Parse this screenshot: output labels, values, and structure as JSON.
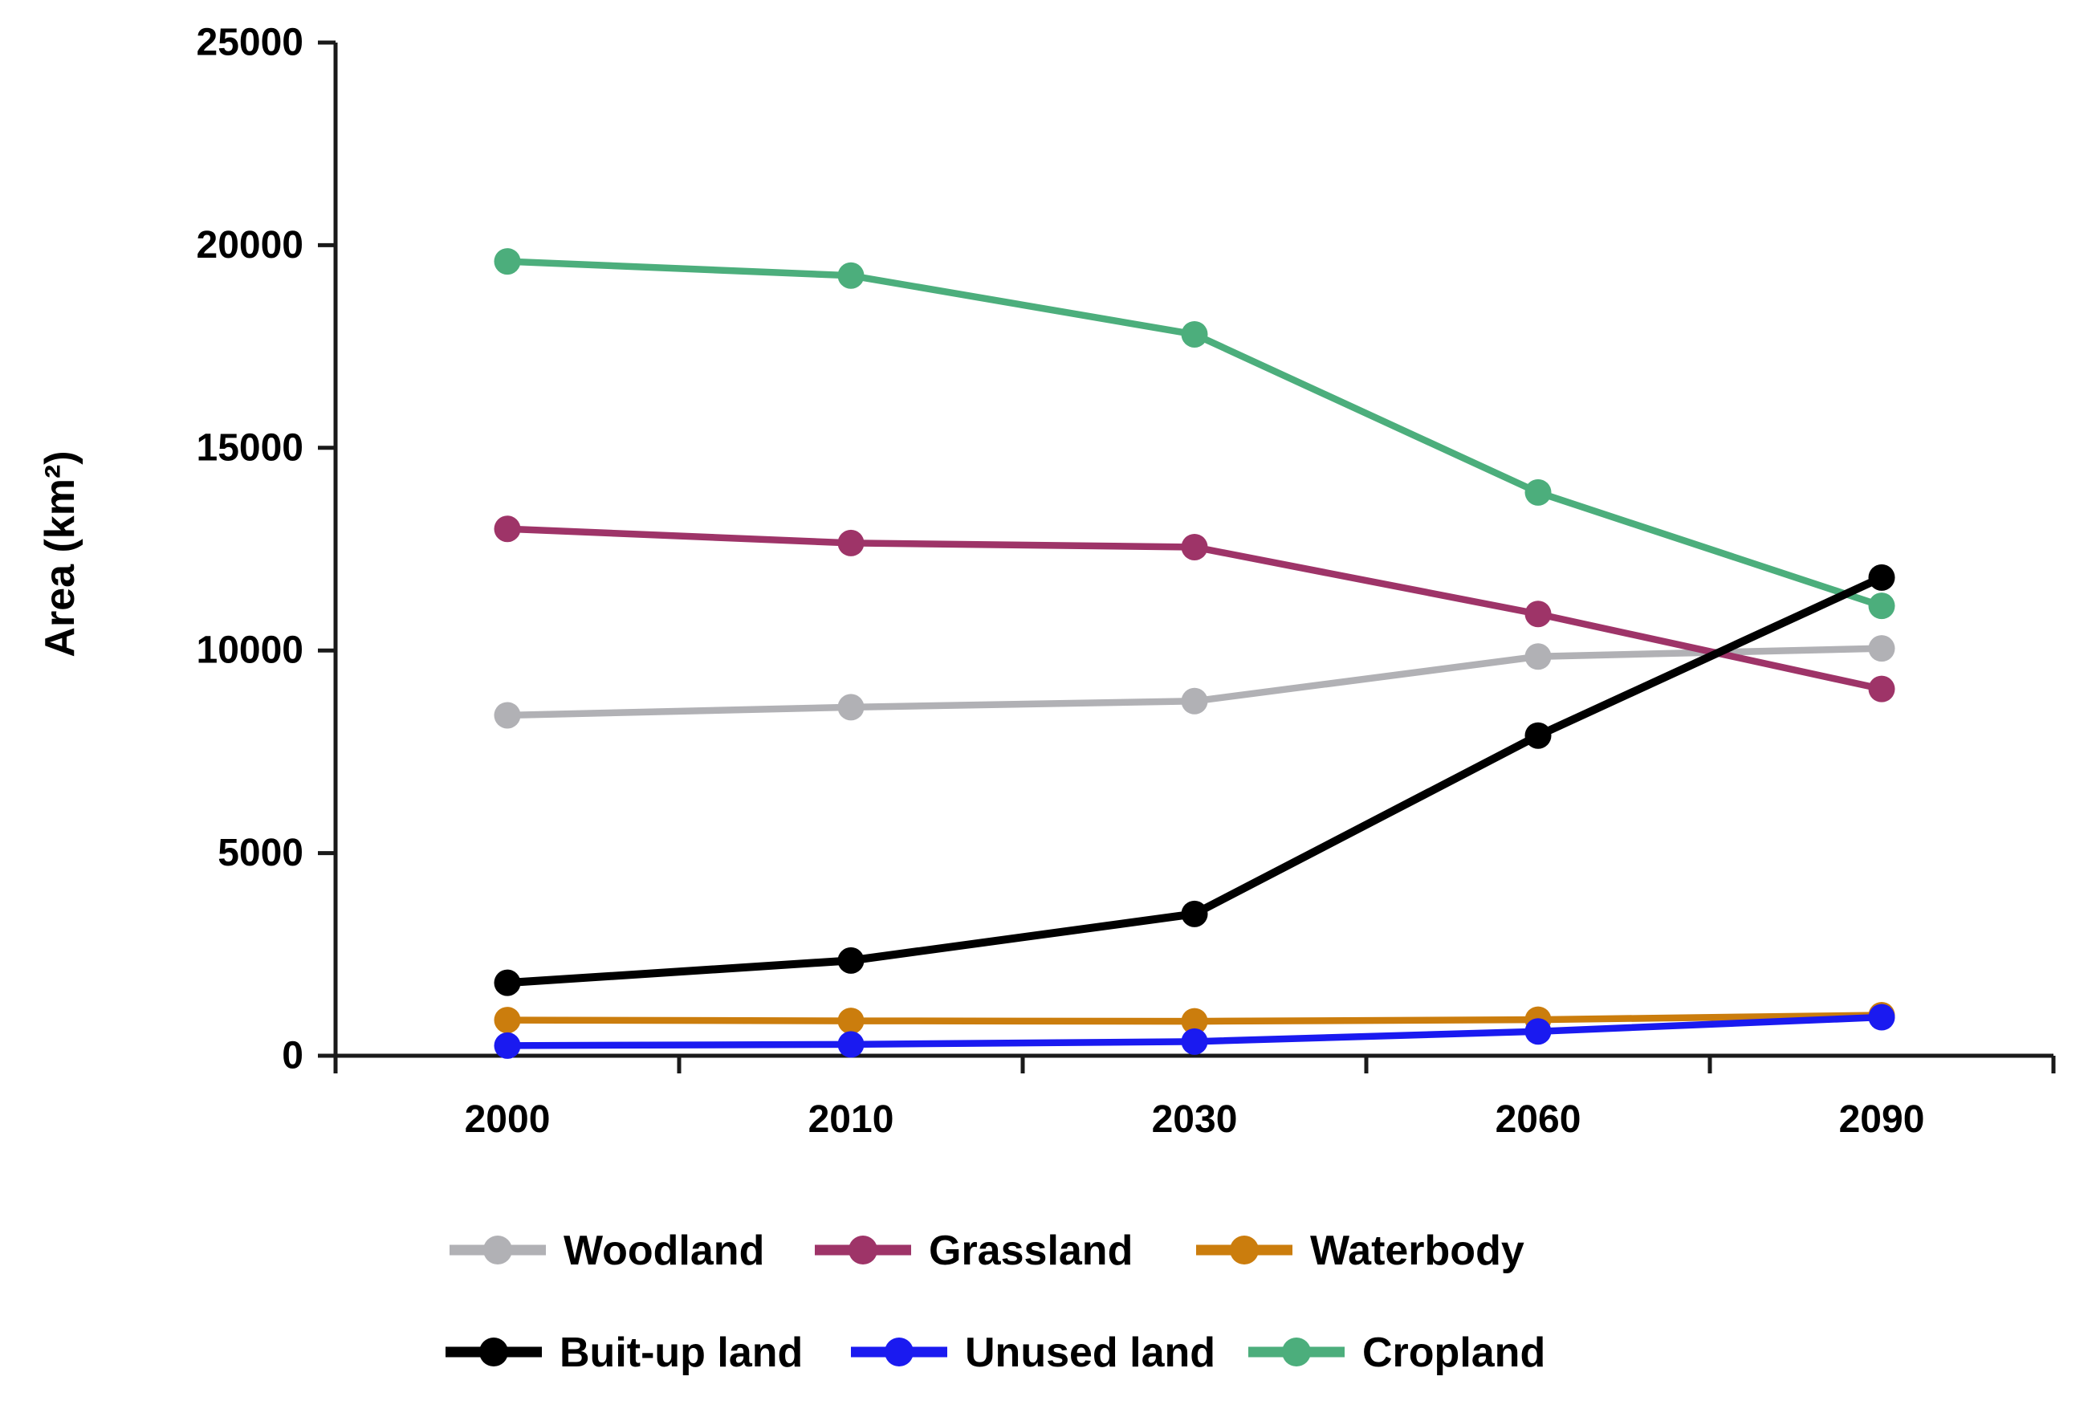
{
  "chart_data": {
    "type": "line",
    "title": "",
    "xlabel": "",
    "ylabel": "Area (km²)",
    "categories": [
      "2000",
      "2010",
      "2030",
      "2060",
      "2090"
    ],
    "ylim": [
      0,
      25000
    ],
    "y_ticks": [
      0,
      5000,
      10000,
      15000,
      20000,
      25000
    ],
    "grid": false,
    "legend_position": "bottom",
    "series": [
      {
        "name": "Woodland",
        "color": "#b1b1b5",
        "values": [
          8400,
          8600,
          8750,
          9850,
          10050
        ]
      },
      {
        "name": "Grassland",
        "color": "#9e3468",
        "values": [
          13000,
          12650,
          12550,
          10900,
          9050
        ]
      },
      {
        "name": "Waterbody",
        "color": "#cb7d0d",
        "values": [
          880,
          860,
          850,
          890,
          1000
        ]
      },
      {
        "name": "Buit-up land",
        "color": "#000000",
        "values": [
          1800,
          2350,
          3500,
          7900,
          11800
        ]
      },
      {
        "name": "Unused land",
        "color": "#1a1af0",
        "values": [
          250,
          280,
          350,
          600,
          950
        ]
      },
      {
        "name": "Cropland",
        "color": "#4cae7c",
        "values": [
          19600,
          19250,
          17800,
          13900,
          11100
        ]
      }
    ],
    "legend_rows": [
      [
        "Woodland",
        "Grassland",
        "Waterbody"
      ],
      [
        "Buit-up land",
        "Unused land",
        "Cropland"
      ]
    ]
  }
}
